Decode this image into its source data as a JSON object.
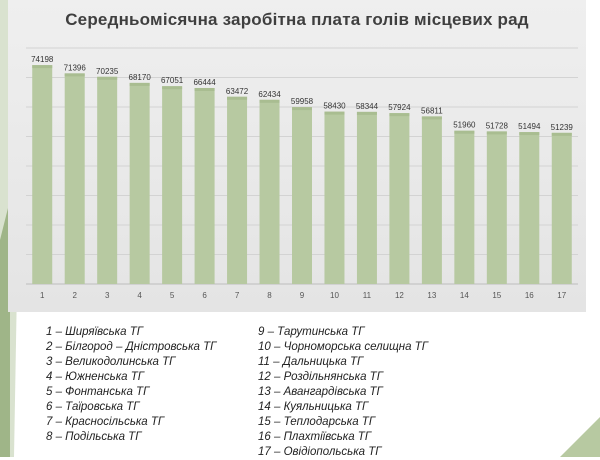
{
  "chart_data": {
    "type": "bar",
    "title": "Середньомісячна заробітна плата голів місцевих рад",
    "categories": [
      "1",
      "2",
      "3",
      "4",
      "5",
      "6",
      "7",
      "8",
      "9",
      "10",
      "11",
      "12",
      "13",
      "14",
      "15",
      "16",
      "17"
    ],
    "values": [
      74198,
      71396,
      70235,
      68170,
      67051,
      66444,
      63472,
      62434,
      59958,
      58430,
      58344,
      57924,
      56811,
      51960,
      51728,
      51494,
      51239
    ],
    "ylim": [
      0,
      80000
    ],
    "grid": true,
    "colors": {
      "bar": "#b7c9a1",
      "bar_top": "#a9bd91",
      "grid": "#d3d3d3"
    }
  },
  "legend": {
    "left": [
      "1 – Ширяївська  ТГ",
      "2 – Білгород – Дністровська  ТГ",
      "3 – Великодолинська  ТГ",
      "4 – Южненська  ТГ",
      "5 – Фонтанська  ТГ",
      "6 – Таїровська  ТГ",
      "7 – Красносільська  ТГ",
      "8 – Подільська  ТГ"
    ],
    "right": [
      "9 – Тарутинська  ТГ",
      "10 – Чорноморська  селищна  ТГ",
      "11 – Дальницька  ТГ",
      "12 – Роздільнянська  ТГ",
      "13 – Авангардівська  ТГ",
      "14 – Куяльницька  ТГ",
      "15 – Теплодарська  ТГ",
      "16 – Плахтіївська  ТГ",
      "17 – Овідіопольська  ТГ"
    ]
  },
  "colors": {
    "accent_green": "#8aa86b",
    "deco_green": "#a4b98d"
  }
}
